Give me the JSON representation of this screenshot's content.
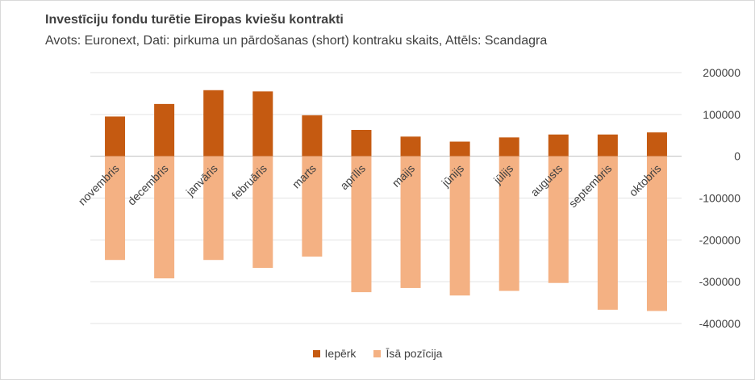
{
  "chart_data": {
    "type": "bar",
    "title": "Investīciju fondu turētie Eiropas kviešu kontrakti",
    "subtitle": "Avots: Euronext, Dati: pirkuma un pārdošanas (short) kontraku skaits, Attēls: Scandagra",
    "categories": [
      "novembris",
      "decembris",
      "janvāris",
      "februāris",
      "marts",
      "aprīlis",
      "maijs",
      "jūnijs",
      "jūlijs",
      "augusts",
      "septembris",
      "oktobris"
    ],
    "series": [
      {
        "name": "Iepērk",
        "color": "#c55a11",
        "values": [
          95000,
          125000,
          158000,
          155000,
          98000,
          63000,
          47000,
          35000,
          45000,
          52000,
          52000,
          57000
        ]
      },
      {
        "name": "Īsā pozīcija",
        "color": "#f4b183",
        "values": [
          -248000,
          -292000,
          -248000,
          -267000,
          -240000,
          -325000,
          -315000,
          -333000,
          -322000,
          -303000,
          -367000,
          -370000
        ]
      }
    ],
    "ylim": [
      -400000,
      200000
    ],
    "yticks": [
      200000,
      100000,
      0,
      -100000,
      -200000,
      -300000,
      -400000
    ],
    "y_axis_position": "right",
    "grid": true,
    "legend": "bottom"
  }
}
